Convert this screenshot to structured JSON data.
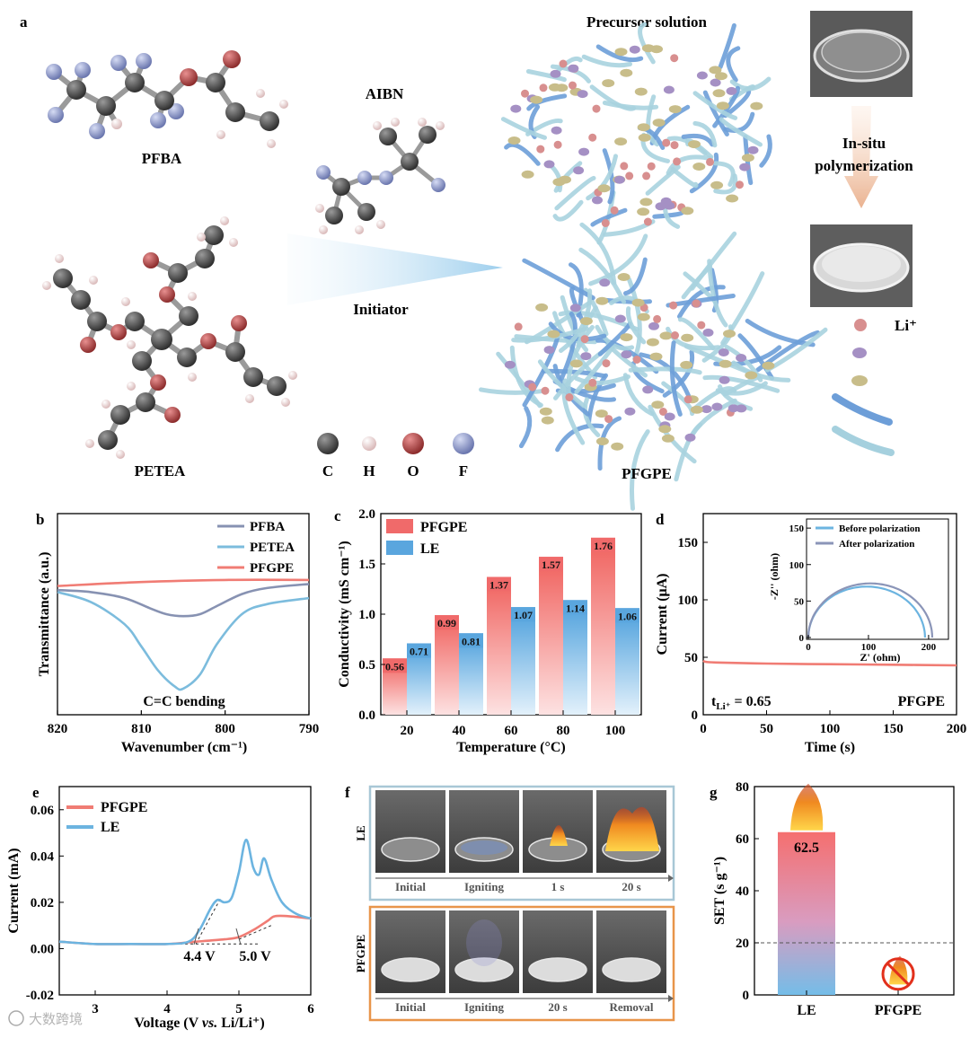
{
  "panel_a": {
    "letter": "a",
    "molecule_labels": {
      "pfba": "PFBA",
      "petea": "PETEA",
      "aibn": "AIBN",
      "pfgpe": "PFGPE"
    },
    "precursor_label": "Precursor solution",
    "initiator_label": "Initiator",
    "process_label_1": "In-situ",
    "process_label_2": "polymerization",
    "li_label": "Li⁺",
    "atom_legend": [
      {
        "symbol": "C",
        "color": "#4a4a4a"
      },
      {
        "symbol": "H",
        "color": "#f2d6d6"
      },
      {
        "symbol": "O",
        "color": "#b84a4a"
      },
      {
        "symbol": "F",
        "color": "#8a95c8"
      }
    ]
  },
  "chart_data": [
    {
      "panel": "b",
      "type": "line",
      "xlabel": "Wavenumber (cm⁻¹)",
      "ylabel": "Transmittance (a.u.)",
      "xlim": [
        820,
        790
      ],
      "x_ticks": [
        820,
        810,
        800,
        790
      ],
      "annotation": "C=C bending",
      "series": [
        {
          "name": "PFBA",
          "color": "#8792b2",
          "x": [
            820,
            816,
            812,
            809,
            807,
            805,
            803,
            801,
            798,
            795,
            790
          ],
          "y": [
            0.62,
            0.61,
            0.58,
            0.53,
            0.5,
            0.49,
            0.5,
            0.54,
            0.6,
            0.63,
            0.65
          ]
        },
        {
          "name": "PETEA",
          "color": "#7cbcdd",
          "x": [
            820,
            816,
            812,
            810,
            808,
            806,
            805,
            803,
            801,
            798,
            795,
            790
          ],
          "y": [
            0.61,
            0.56,
            0.45,
            0.34,
            0.22,
            0.14,
            0.13,
            0.2,
            0.35,
            0.5,
            0.55,
            0.58
          ]
        },
        {
          "name": "PFGPE",
          "color": "#f07c74",
          "x": [
            820,
            810,
            800,
            790
          ],
          "y": [
            0.64,
            0.66,
            0.67,
            0.67
          ]
        }
      ]
    },
    {
      "panel": "c",
      "type": "bar",
      "xlabel": "Temperature (°C)",
      "ylabel": "Conductivity (mS cm⁻¹)",
      "ylim": [
        0,
        2.0
      ],
      "y_ticks": [
        "0.0",
        "0.5",
        "1.0",
        "1.5",
        "2.0"
      ],
      "categories": [
        "20",
        "40",
        "60",
        "80",
        "100"
      ],
      "series": [
        {
          "name": "PFGPE",
          "color": "#f06a6a",
          "values": [
            0.56,
            0.99,
            1.37,
            1.57,
            1.76
          ],
          "labels": [
            "0.56",
            "0.99",
            "1.37",
            "1.57",
            "1.76"
          ]
        },
        {
          "name": "LE",
          "color": "#5aa6de",
          "values": [
            0.71,
            0.81,
            1.07,
            1.14,
            1.06
          ],
          "labels": [
            "0.71",
            "0.81",
            "1.07",
            "1.14",
            "1.06"
          ]
        }
      ]
    },
    {
      "panel": "d",
      "type": "line",
      "xlabel": "Time (s)",
      "ylabel": "Current (μA)",
      "xlim": [
        0,
        200
      ],
      "ylim": [
        0,
        175
      ],
      "x_ticks": [
        0,
        50,
        100,
        150,
        200
      ],
      "y_ticks": [
        0,
        50,
        100,
        150
      ],
      "annotation_left": "t",
      "annotation_sub": "Li⁺",
      "annotation_value": " = 0.65",
      "annotation_right": "PFGPE",
      "series": [
        {
          "name": "current",
          "color": "#f07c74",
          "x": [
            0,
            2,
            10,
            50,
            100,
            150,
            200
          ],
          "y": [
            47,
            46,
            45.5,
            44.5,
            44,
            43.5,
            43
          ]
        }
      ],
      "inset": {
        "xlabel": "Z' (ohm)",
        "ylabel": "-Z'' (ohm)",
        "xlim": [
          0,
          230
        ],
        "ylim": [
          0,
          160
        ],
        "x_ticks": [
          0,
          100,
          200
        ],
        "y_ticks": [
          0,
          50,
          100,
          150
        ],
        "series": [
          {
            "name": "Before polarization",
            "color": "#6cb4e0",
            "center": 97,
            "radius": 97
          },
          {
            "name": "After polarization",
            "color": "#8b95b8",
            "center": 103,
            "radius": 103
          }
        ]
      }
    },
    {
      "panel": "e",
      "type": "line",
      "xlabel_pre": "Voltage (V ",
      "xlabel_vs": "vs.",
      "xlabel_post": " Li/Li⁺)",
      "ylabel": "Current (mA)",
      "xlim": [
        2.5,
        6
      ],
      "ylim": [
        -0.02,
        0.07
      ],
      "x_ticks": [
        3,
        4,
        5,
        6
      ],
      "y_ticks": [
        "-0.02",
        "0.00",
        "0.02",
        "0.04",
        "0.06"
      ],
      "annotations": [
        "4.4 V",
        "5.0 V"
      ],
      "series": [
        {
          "name": "PFGPE",
          "color": "#f07c74",
          "x": [
            2.5,
            3.0,
            3.5,
            4.0,
            4.4,
            4.8,
            5.0,
            5.2,
            5.4,
            5.5,
            5.7,
            6.0
          ],
          "y": [
            0.003,
            0.002,
            0.002,
            0.002,
            0.003,
            0.004,
            0.005,
            0.008,
            0.012,
            0.014,
            0.014,
            0.013
          ]
        },
        {
          "name": "LE",
          "color": "#6cb4e0",
          "x": [
            2.5,
            3.0,
            3.5,
            4.0,
            4.3,
            4.45,
            4.6,
            4.7,
            4.8,
            4.9,
            5.0,
            5.1,
            5.2,
            5.28,
            5.35,
            5.45,
            5.6,
            5.8,
            6.0
          ],
          "y": [
            0.003,
            0.002,
            0.002,
            0.002,
            0.003,
            0.008,
            0.017,
            0.021,
            0.02,
            0.022,
            0.033,
            0.047,
            0.035,
            0.032,
            0.039,
            0.03,
            0.02,
            0.015,
            0.013
          ]
        }
      ]
    },
    {
      "panel": "g",
      "type": "bar",
      "ylabel": "SET (s g⁻¹)",
      "ylim": [
        0,
        80
      ],
      "y_ticks": [
        0,
        20,
        40,
        60,
        80
      ],
      "reference_line": 20,
      "categories": [
        "LE",
        "PFGPE"
      ],
      "values": [
        62.5,
        0
      ],
      "labels": [
        "62.5",
        ""
      ]
    }
  ],
  "panel_letters": {
    "b": "b",
    "c": "c",
    "d": "d",
    "e": "e",
    "f": "f",
    "g": "g"
  },
  "panel_f": {
    "rows": [
      {
        "label": "LE",
        "steps": [
          "Initial",
          "Igniting",
          "1 s",
          "20 s"
        ],
        "frame_color": "#a8c7d6"
      },
      {
        "label": "PFGPE",
        "steps": [
          "Initial",
          "Igniting",
          "20 s",
          "Removal"
        ],
        "frame_color": "#e8954a"
      }
    ]
  },
  "watermark": "大数跨境"
}
